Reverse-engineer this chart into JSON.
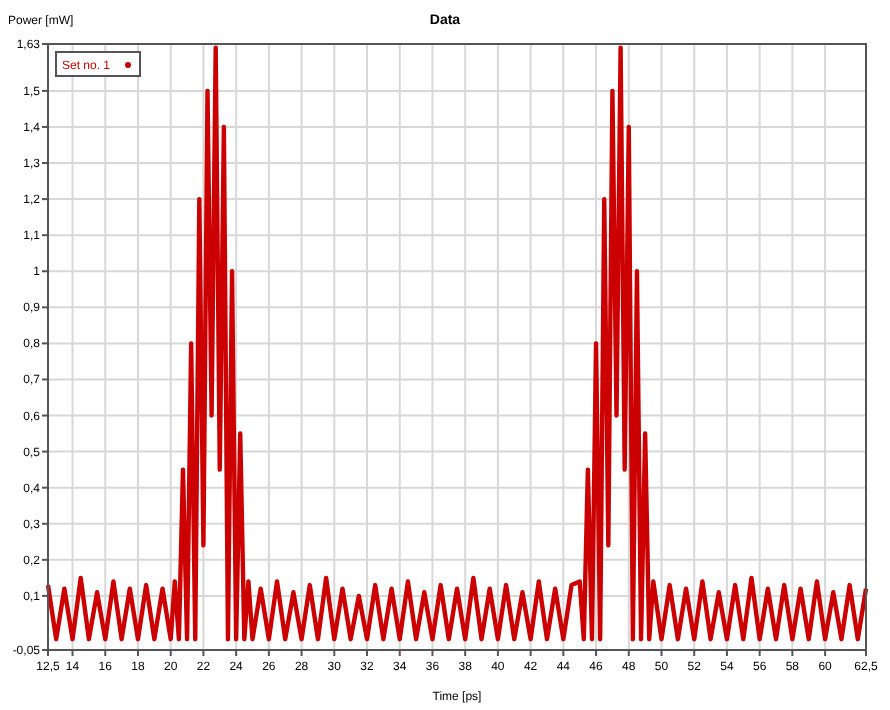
{
  "chart_data": {
    "type": "line",
    "title": "Data",
    "xlabel": "Time [ps]",
    "ylabel": "Power [mW]",
    "xlim": [
      12.5,
      62.5
    ],
    "xticks": [
      {
        "value": 12.5,
        "label": "12,5"
      },
      14,
      16,
      18,
      20,
      22,
      24,
      26,
      28,
      30,
      32,
      34,
      36,
      38,
      40,
      42,
      44,
      46,
      48,
      50,
      52,
      54,
      56,
      58,
      60,
      {
        "value": 62.5,
        "label": "62,5"
      }
    ],
    "ylim": [
      -0.05,
      1.63
    ],
    "yticks": [
      {
        "value": -0.05,
        "label": "-0,05"
      },
      {
        "value": 0.1,
        "label": "0,1"
      },
      {
        "value": 0.2,
        "label": "0,2"
      },
      {
        "value": 0.3,
        "label": "0,3"
      },
      {
        "value": 0.4,
        "label": "0,4"
      },
      {
        "value": 0.5,
        "label": "0,5"
      },
      {
        "value": 0.6,
        "label": "0,6"
      },
      {
        "value": 0.7,
        "label": "0,7"
      },
      {
        "value": 0.8,
        "label": "0,8"
      },
      {
        "value": 0.9,
        "label": "0,9"
      },
      1,
      {
        "value": 1.1,
        "label": "1,1"
      },
      {
        "value": 1.2,
        "label": "1,2"
      },
      {
        "value": 1.3,
        "label": "1,3"
      },
      {
        "value": 1.4,
        "label": "1,4"
      },
      {
        "value": 1.5,
        "label": "1,5"
      },
      {
        "value": 1.63,
        "label": "1,63"
      }
    ],
    "grid": true,
    "legend": "top left",
    "series": [
      {
        "name": "Set no. 1",
        "color": "#cc0000",
        "x": [
          12.5,
          13,
          13.5,
          14,
          14.5,
          15,
          15.5,
          16,
          16.5,
          17,
          17.5,
          18,
          18.5,
          19,
          19.5,
          20,
          20.25,
          20.5,
          20.75,
          21,
          21.25,
          21.5,
          21.75,
          22,
          22.25,
          22.5,
          22.75,
          23,
          23.25,
          23.5,
          23.75,
          24,
          24.25,
          24.5,
          24.75,
          25,
          25.5,
          26,
          26.5,
          27,
          27.5,
          28,
          28.5,
          29,
          29.5,
          30,
          30.5,
          31,
          31.5,
          32,
          32.5,
          33,
          33.5,
          34,
          34.5,
          35,
          35.5,
          36,
          36.5,
          37,
          37.5,
          38,
          38.5,
          39,
          39.5,
          40,
          40.5,
          41,
          41.5,
          42,
          42.5,
          43,
          43.5,
          44,
          44.5,
          45,
          45.25,
          45.5,
          45.75,
          46,
          46.25,
          46.5,
          46.75,
          47,
          47.25,
          47.5,
          47.75,
          48,
          48.25,
          48.5,
          48.75,
          49,
          49.25,
          49.5,
          50,
          50.5,
          51,
          51.5,
          52,
          52.5,
          53,
          53.5,
          54,
          54.5,
          55,
          55.5,
          56,
          56.5,
          57,
          57.5,
          58,
          58.5,
          59,
          59.5,
          60,
          60.5,
          61,
          61.5,
          62,
          62.5
        ],
        "values": [
          0.13,
          -0.02,
          0.12,
          -0.02,
          0.15,
          -0.02,
          0.11,
          -0.02,
          0.14,
          -0.02,
          0.12,
          -0.02,
          0.13,
          -0.02,
          0.12,
          -0.02,
          0.14,
          -0.02,
          0.45,
          -0.02,
          0.8,
          -0.02,
          1.2,
          0.24,
          1.5,
          0.6,
          1.62,
          0.45,
          1.4,
          -0.02,
          1.0,
          -0.02,
          0.55,
          -0.02,
          0.14,
          -0.02,
          0.12,
          -0.02,
          0.14,
          -0.02,
          0.11,
          -0.02,
          0.13,
          -0.02,
          0.15,
          -0.02,
          0.12,
          -0.02,
          0.1,
          -0.02,
          0.13,
          -0.02,
          0.12,
          -0.02,
          0.14,
          -0.02,
          0.11,
          -0.02,
          0.13,
          -0.02,
          0.12,
          -0.02,
          0.15,
          -0.02,
          0.12,
          -0.02,
          0.13,
          -0.02,
          0.11,
          -0.02,
          0.14,
          -0.02,
          0.12,
          -0.02,
          0.13,
          0.14,
          -0.02,
          0.45,
          -0.02,
          0.8,
          -0.02,
          1.2,
          0.24,
          1.5,
          0.6,
          1.62,
          0.45,
          1.4,
          -0.02,
          1.0,
          -0.02,
          0.55,
          -0.02,
          0.14,
          -0.02,
          0.13,
          -0.02,
          0.12,
          -0.02,
          0.14,
          -0.02,
          0.11,
          -0.02,
          0.13,
          -0.02,
          0.15,
          -0.02,
          0.12,
          -0.02,
          0.13,
          -0.02,
          0.12,
          -0.02,
          0.14,
          -0.02,
          0.11,
          -0.02,
          0.13,
          -0.02,
          0.12
        ]
      }
    ]
  }
}
